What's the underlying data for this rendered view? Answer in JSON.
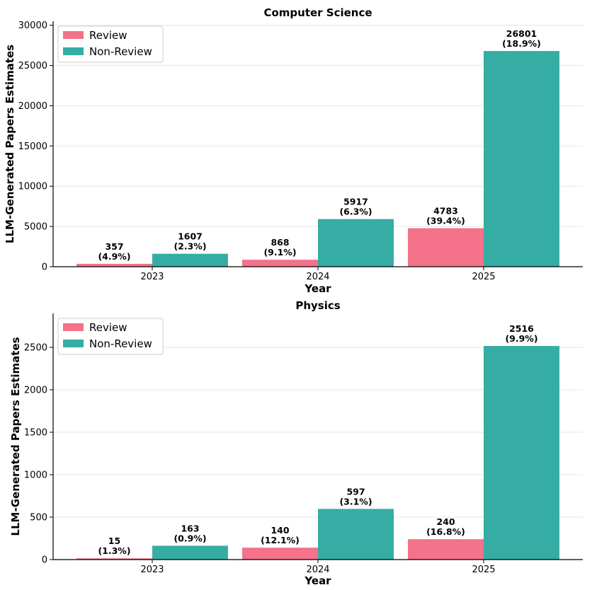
{
  "chart_data": [
    {
      "type": "bar",
      "title": "Computer Science",
      "xlabel": "Year",
      "ylabel": "LLM-Generated Papers Estimates",
      "categories": [
        "2023",
        "2024",
        "2025"
      ],
      "ylim": [
        0,
        30500
      ],
      "yticks": [
        0,
        5000,
        10000,
        15000,
        20000,
        25000,
        30000
      ],
      "grid": true,
      "legend_position": "top-left",
      "series": [
        {
          "name": "Review",
          "color": "#f4728a",
          "values": [
            357,
            868,
            4783
          ],
          "labels": [
            [
              "357",
              "(4.9%)"
            ],
            [
              "868",
              "(9.1%)"
            ],
            [
              "4783",
              "(39.4%)"
            ]
          ]
        },
        {
          "name": "Non-Review",
          "color": "#36ada4",
          "values": [
            1607,
            5917,
            26801
          ],
          "labels": [
            [
              "1607",
              "(2.3%)"
            ],
            [
              "5917",
              "(6.3%)"
            ],
            [
              "26801",
              "(18.9%)"
            ]
          ]
        }
      ]
    },
    {
      "type": "bar",
      "title": "Physics",
      "xlabel": "Year",
      "ylabel": "LLM-Generated Papers Estimates",
      "categories": [
        "2023",
        "2024",
        "2025"
      ],
      "ylim": [
        0,
        2900
      ],
      "yticks": [
        0,
        500,
        1000,
        1500,
        2000,
        2500
      ],
      "grid": true,
      "legend_position": "top-left",
      "series": [
        {
          "name": "Review",
          "color": "#f4728a",
          "values": [
            15,
            140,
            240
          ],
          "labels": [
            [
              "15",
              "(1.3%)"
            ],
            [
              "140",
              "(12.1%)"
            ],
            [
              "240",
              "(16.8%)"
            ]
          ]
        },
        {
          "name": "Non-Review",
          "color": "#36ada4",
          "values": [
            163,
            597,
            2516
          ],
          "labels": [
            [
              "163",
              "(0.9%)"
            ],
            [
              "597",
              "(3.1%)"
            ],
            [
              "2516",
              "(9.9%)"
            ]
          ]
        }
      ]
    }
  ]
}
